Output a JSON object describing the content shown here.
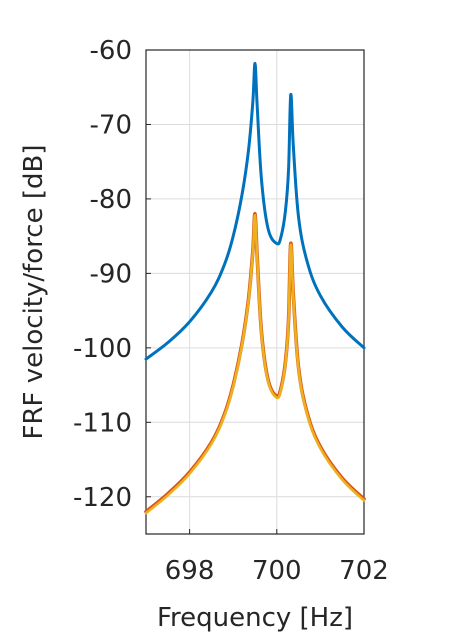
{
  "chart_data": {
    "type": "line",
    "title": "",
    "xlabel": "Frequency [Hz]",
    "ylabel": "FRF velocity/force [dB]",
    "xlim": [
      697,
      702
    ],
    "ylim": [
      -125,
      -60
    ],
    "xticks": [
      698,
      700,
      702
    ],
    "yticks": [
      -60,
      -70,
      -80,
      -90,
      -100,
      -110,
      -120
    ],
    "grid": true,
    "legend": "none",
    "colors": {
      "series1": "#0072BD",
      "series2": "#D95319",
      "series3": "#EDB120",
      "grid": "#dcdcdc",
      "axis": "#262626"
    },
    "series": [
      {
        "x": [
          697,
          697.5,
          698,
          698.5,
          698.8,
          699.0,
          699.2,
          699.35,
          699.45,
          699.5,
          699.55,
          699.65,
          699.8,
          700.0,
          700.1,
          700.2,
          700.27,
          700.32,
          700.38,
          700.5,
          700.7,
          701.0,
          701.5,
          702
        ],
        "values": [
          -101.5,
          -99.3,
          -96.5,
          -92.5,
          -88.8,
          -85.0,
          -79.5,
          -73.5,
          -67.0,
          -61.8,
          -67.5,
          -77.5,
          -84.0,
          -86.0,
          -85.0,
          -81.5,
          -76.0,
          -66.0,
          -73.0,
          -82.5,
          -88.5,
          -93.0,
          -97.2,
          -100.0
        ]
      },
      {
        "x": [
          697,
          697.5,
          698,
          698.5,
          698.8,
          699.0,
          699.2,
          699.35,
          699.45,
          699.5,
          699.55,
          699.65,
          699.8,
          700.0,
          700.1,
          700.2,
          700.27,
          700.32,
          700.38,
          700.5,
          700.7,
          701.0,
          701.5,
          702
        ],
        "values": [
          -122.0,
          -119.6,
          -116.7,
          -112.7,
          -108.9,
          -105.0,
          -99.5,
          -93.5,
          -87.0,
          -82.0,
          -87.8,
          -98.0,
          -104.3,
          -106.5,
          -105.3,
          -101.8,
          -96.2,
          -86.0,
          -93.0,
          -102.7,
          -108.8,
          -113.3,
          -117.5,
          -120.3
        ]
      },
      {
        "x": [
          697,
          697.5,
          698,
          698.5,
          698.8,
          699.0,
          699.2,
          699.35,
          699.45,
          699.5,
          699.55,
          699.65,
          699.8,
          700.0,
          700.1,
          700.2,
          700.27,
          700.32,
          700.38,
          700.5,
          700.7,
          701.0,
          701.5,
          702
        ],
        "values": [
          -122.2,
          -119.8,
          -116.9,
          -112.9,
          -109.1,
          -105.2,
          -99.7,
          -93.7,
          -87.2,
          -82.2,
          -88.0,
          -98.2,
          -104.5,
          -106.7,
          -105.5,
          -102.0,
          -96.4,
          -86.2,
          -93.2,
          -102.9,
          -109.0,
          -113.5,
          -117.7,
          -120.5
        ]
      }
    ]
  }
}
